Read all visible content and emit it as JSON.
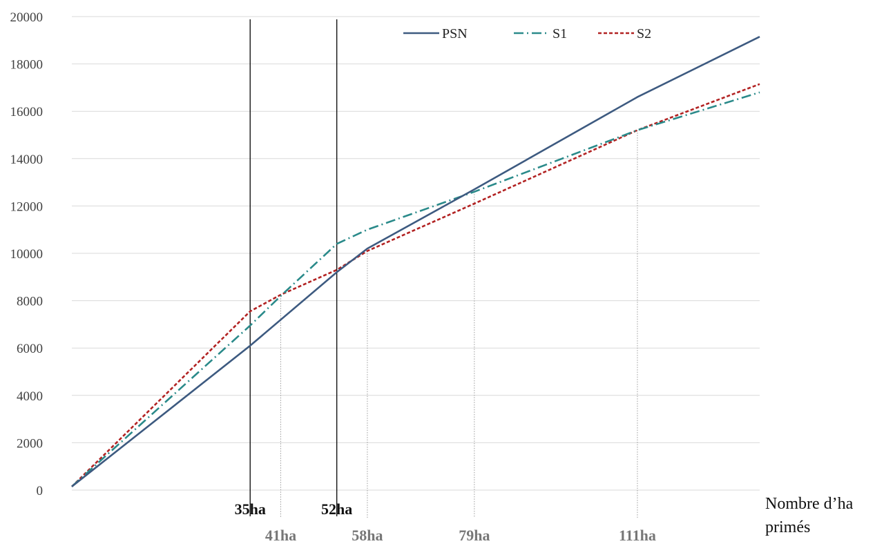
{
  "chart_data": {
    "type": "line",
    "xlabel_lines": [
      "Nombre d’ha",
      "primés"
    ],
    "ylabel": "",
    "xlim": [
      0,
      135
    ],
    "ylim": [
      0,
      20000
    ],
    "yticks": [
      0,
      2000,
      4000,
      6000,
      8000,
      10000,
      12000,
      14000,
      16000,
      18000,
      20000
    ],
    "grid": true,
    "legend_position": "top-right",
    "series": [
      {
        "name": "PSN",
        "color": "#3d5a80",
        "dash": "solid",
        "x": [
          0,
          35,
          52,
          58,
          79,
          111,
          135
        ],
        "y": [
          150,
          6100,
          9200,
          10200,
          12700,
          16600,
          19150
        ]
      },
      {
        "name": "S1",
        "color": "#2a8a8a",
        "dash": "dashdot",
        "x": [
          0,
          35,
          41,
          52,
          58,
          79,
          111,
          135
        ],
        "y": [
          150,
          6950,
          8200,
          10400,
          11000,
          12600,
          15200,
          16800
        ]
      },
      {
        "name": "S2",
        "color": "#b22222",
        "dash": "dotted",
        "x": [
          0,
          35,
          41,
          52,
          58,
          79,
          111,
          135
        ],
        "y": [
          150,
          7550,
          8250,
          9300,
          10100,
          12100,
          15200,
          17150
        ]
      }
    ],
    "markers": [
      {
        "x": 35,
        "label": "35ha",
        "style": "main"
      },
      {
        "x": 52,
        "label": "52ha",
        "style": "main"
      },
      {
        "x": 41,
        "label": "41ha",
        "style": "sub",
        "y_top": 8200
      },
      {
        "x": 58,
        "label": "58ha",
        "style": "sub",
        "y_top": 10100
      },
      {
        "x": 79,
        "label": "79ha",
        "style": "sub",
        "y_top": 12600
      },
      {
        "x": 111,
        "label": "111ha",
        "style": "sub",
        "y_top": 15200
      }
    ]
  }
}
